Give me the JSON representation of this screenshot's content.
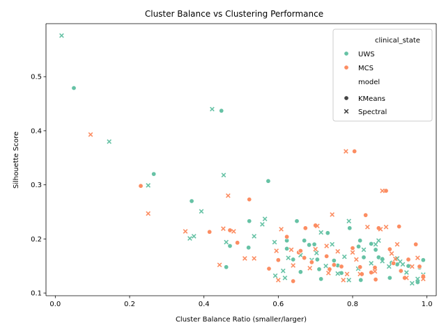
{
  "chart_data": {
    "type": "scatter",
    "title": "Cluster Balance vs Clustering Performance",
    "xlabel": "Cluster Balance Ratio (smaller/larger)",
    "ylabel": "Silhouette Score",
    "xlim": [
      -0.025,
      1.025
    ],
    "ylim": [
      0.095,
      0.598
    ],
    "xticks": [
      0.0,
      0.2,
      0.4,
      0.6,
      0.8,
      1.0
    ],
    "xtick_labels": [
      "0.0",
      "0.2",
      "0.4",
      "0.6",
      "0.8",
      "1.0"
    ],
    "yticks": [
      0.1,
      0.2,
      0.3,
      0.4,
      0.5
    ],
    "ytick_labels": [
      "0.1",
      "0.2",
      "0.3",
      "0.4",
      "0.5"
    ],
    "grid": false,
    "legend": {
      "placement": "top-right",
      "hue_title": "clinical_state",
      "hue_entries": [
        {
          "label": "UWS",
          "color": "#66c2a5"
        },
        {
          "label": "MCS",
          "color": "#fc8d62"
        }
      ],
      "style_title": "model",
      "style_entries": [
        {
          "label": "KMeans",
          "marker": "circle"
        },
        {
          "label": "Spectral",
          "marker": "x"
        }
      ]
    },
    "series": [
      {
        "name": "UWS",
        "model": "KMeans",
        "color": "#66c2a5",
        "marker": "circle",
        "x": [
          0.05,
          0.265,
          0.447,
          0.367,
          0.573,
          0.522,
          0.52,
          0.46,
          0.47,
          0.623,
          0.65,
          0.623,
          0.64,
          0.66,
          0.67,
          0.683,
          0.697,
          0.705,
          0.71,
          0.715,
          0.733,
          0.75,
          0.76,
          0.77,
          0.792,
          0.816,
          0.82,
          0.822,
          0.83,
          0.85,
          0.862,
          0.87,
          0.88,
          0.9,
          0.905,
          0.92,
          0.93,
          0.95,
          0.975,
          0.98,
          0.99
        ],
        "y": [
          0.479,
          0.32,
          0.437,
          0.27,
          0.307,
          0.233,
          0.184,
          0.148,
          0.187,
          0.197,
          0.233,
          0.182,
          0.162,
          0.139,
          0.197,
          0.189,
          0.19,
          0.162,
          0.144,
          0.126,
          0.211,
          0.16,
          0.151,
          0.137,
          0.22,
          0.186,
          0.197,
          0.124,
          0.166,
          0.191,
          0.18,
          0.166,
          0.163,
          0.128,
          0.156,
          0.153,
          0.14,
          0.15,
          0.12,
          0.147,
          0.161
        ]
      },
      {
        "name": "UWS",
        "model": "Spectral",
        "color": "#66c2a5",
        "marker": "x",
        "x": [
          0.017,
          0.145,
          0.25,
          0.362,
          0.373,
          0.393,
          0.422,
          0.453,
          0.46,
          0.535,
          0.557,
          0.564,
          0.59,
          0.592,
          0.613,
          0.618,
          0.627,
          0.66,
          0.69,
          0.703,
          0.715,
          0.728,
          0.745,
          0.76,
          0.778,
          0.79,
          0.79,
          0.815,
          0.83,
          0.85,
          0.862,
          0.87,
          0.88,
          0.898,
          0.92,
          0.928,
          0.935,
          0.945,
          0.96,
          0.975,
          0.99
        ],
        "y": [
          0.576,
          0.38,
          0.299,
          0.201,
          0.205,
          0.251,
          0.44,
          0.318,
          0.194,
          0.205,
          0.227,
          0.237,
          0.194,
          0.132,
          0.141,
          0.128,
          0.165,
          0.17,
          0.161,
          0.174,
          0.212,
          0.15,
          0.19,
          0.136,
          0.167,
          0.233,
          0.124,
          0.145,
          0.18,
          0.155,
          0.19,
          0.197,
          0.159,
          0.149,
          0.164,
          0.158,
          0.153,
          0.138,
          0.118,
          0.126,
          0.134
        ]
      },
      {
        "name": "MCS",
        "model": "KMeans",
        "color": "#fc8d62",
        "marker": "circle",
        "x": [
          0.23,
          0.415,
          0.47,
          0.49,
          0.522,
          0.575,
          0.6,
          0.623,
          0.64,
          0.655,
          0.66,
          0.67,
          0.673,
          0.69,
          0.7,
          0.73,
          0.738,
          0.75,
          0.77,
          0.8,
          0.805,
          0.82,
          0.825,
          0.835,
          0.85,
          0.86,
          0.862,
          0.87,
          0.89,
          0.9,
          0.91,
          0.925,
          0.93,
          0.94,
          0.95,
          0.97,
          0.98,
          0.99
        ],
        "y": [
          0.298,
          0.213,
          0.216,
          0.193,
          0.273,
          0.145,
          0.161,
          0.204,
          0.122,
          0.175,
          0.178,
          0.165,
          0.22,
          0.157,
          0.225,
          0.168,
          0.144,
          0.152,
          0.149,
          0.183,
          0.362,
          0.148,
          0.135,
          0.244,
          0.138,
          0.147,
          0.125,
          0.22,
          0.289,
          0.181,
          0.155,
          0.223,
          0.141,
          0.128,
          0.162,
          0.19,
          0.149,
          0.131
        ]
      },
      {
        "name": "MCS",
        "model": "Spectral",
        "color": "#fc8d62",
        "marker": "x",
        "x": [
          0.095,
          0.25,
          0.35,
          0.442,
          0.452,
          0.465,
          0.48,
          0.51,
          0.535,
          0.595,
          0.6,
          0.608,
          0.635,
          0.64,
          0.685,
          0.7,
          0.705,
          0.73,
          0.735,
          0.745,
          0.76,
          0.775,
          0.782,
          0.785,
          0.8,
          0.81,
          0.82,
          0.84,
          0.86,
          0.875,
          0.88,
          0.89,
          0.905,
          0.915,
          0.92,
          0.945,
          0.96,
          0.975,
          0.99
        ],
        "y": [
          0.393,
          0.247,
          0.214,
          0.152,
          0.219,
          0.28,
          0.214,
          0.164,
          0.164,
          0.178,
          0.124,
          0.218,
          0.18,
          0.151,
          0.146,
          0.181,
          0.224,
          0.187,
          0.137,
          0.245,
          0.177,
          0.124,
          0.362,
          0.135,
          0.175,
          0.162,
          0.135,
          0.222,
          0.14,
          0.218,
          0.289,
          0.222,
          0.173,
          0.163,
          0.19,
          0.128,
          0.149,
          0.165,
          0.126
        ]
      }
    ]
  }
}
